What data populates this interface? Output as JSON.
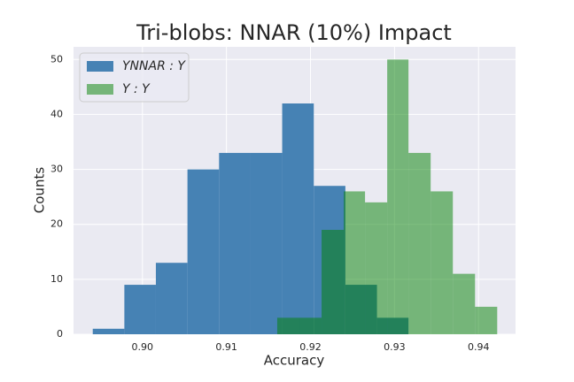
{
  "chart_data": {
    "type": "histogram",
    "title": "Tri-blobs: NNAR (10%) Impact",
    "xlabel": "Accuracy",
    "ylabel": "Counts",
    "series": [
      {
        "name": "YNNAR : Y",
        "color": "#4682b4",
        "opacity": 1,
        "bins": [
          0.89409,
          0.89785,
          0.9016,
          0.90536,
          0.90912,
          0.91288,
          0.91663,
          0.92039,
          0.92415,
          0.92791,
          0.93166
        ],
        "values": [
          1,
          9,
          13,
          30,
          33,
          33,
          42,
          27,
          9,
          3
        ]
      },
      {
        "name": "Y : Y",
        "color": "#008000",
        "opacity": 0.5,
        "bins": [
          0.91604,
          0.91868,
          0.92132,
          0.92396,
          0.92649,
          0.92913,
          0.93166,
          0.9343,
          0.93694,
          0.93958,
          0.94222
        ],
        "values": [
          3,
          3,
          19,
          26,
          24,
          50,
          33,
          26,
          11,
          5
        ]
      }
    ],
    "xlim": [
      0.8918,
      0.9444
    ],
    "xticks": [
      {
        "value": 0.9,
        "label": "0.90"
      },
      0.91,
      0.92,
      0.93,
      0.94
    ],
    "ylim": [
      0,
      52.3
    ],
    "yticks": [
      0,
      10,
      20,
      30,
      40,
      50
    ],
    "grid": true,
    "legend": "upper left"
  }
}
